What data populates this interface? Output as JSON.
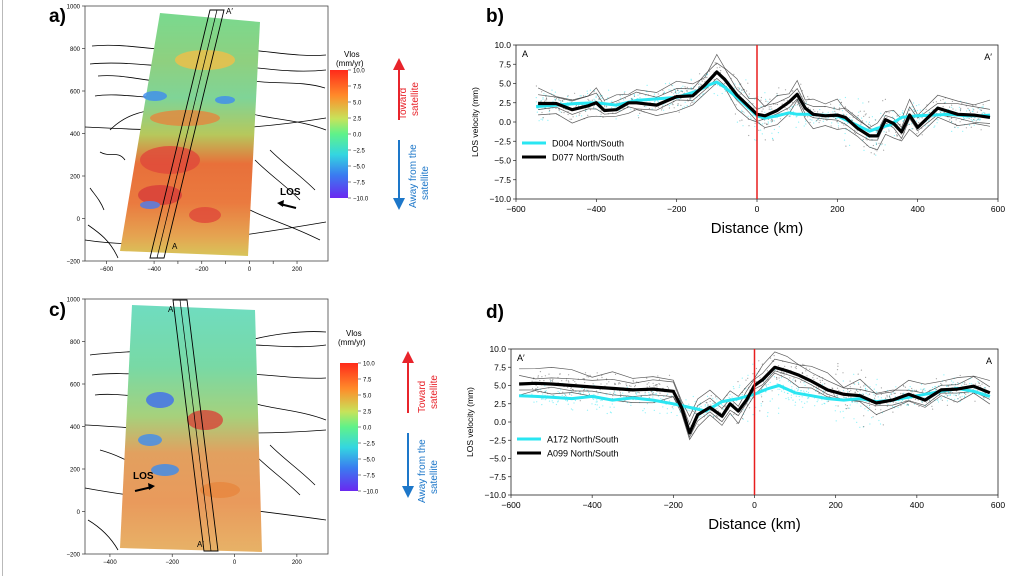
{
  "panels": {
    "a": {
      "letter": "a)",
      "profile_start": "A",
      "profile_end": "A′",
      "los_label": "LOS",
      "x_ticks": [
        -600,
        -400,
        -300,
        -200,
        -100,
        0,
        100,
        200
      ],
      "x_tick_labels": [
        "−600",
        "−400",
        "",
        "−200",
        "",
        "0",
        "",
        "200"
      ],
      "y_ticks": [
        -200,
        0,
        200,
        400,
        600,
        800,
        1000
      ],
      "colorbar": {
        "title_line1": "Vlos",
        "title_line2": "(mm/yr)",
        "ticks": [
          10.0,
          7.5,
          5.0,
          2.5,
          0.0,
          -2.5,
          -5.0,
          -7.5,
          -10.0
        ],
        "tick_labels": [
          "10.0",
          "7.5",
          "5.0",
          "2.5",
          "0.0",
          "−2.5",
          "−5.0",
          "−7.5",
          "−10.0"
        ]
      },
      "toward_label": [
        "Toward",
        "satellite"
      ],
      "away_label": [
        "Away from the",
        "satellite"
      ]
    },
    "c": {
      "letter": "c)",
      "profile_start": "A",
      "profile_end": "A′",
      "los_label": "LOS",
      "x_ticks": [
        -400,
        -200,
        0,
        200
      ],
      "x_tick_labels": [
        "−400",
        "−200",
        "0",
        "200"
      ],
      "y_ticks": [
        -200,
        0,
        200,
        400,
        600,
        800,
        1000
      ],
      "colorbar": {
        "title_line1": "Vlos",
        "title_line2": "(mm/yr)",
        "ticks": [
          10.0,
          7.5,
          5.0,
          2.5,
          0.0,
          -2.5,
          -5.0,
          -7.5,
          -10.0
        ],
        "tick_labels": [
          "10.0",
          "7.5",
          "5.0",
          "2.5",
          "0.0",
          "−2.5",
          "−5.0",
          "−7.5",
          "−10.0"
        ]
      },
      "toward_label": [
        "Toward",
        "satellite"
      ],
      "away_label": [
        "Away from the",
        "satellite"
      ]
    }
  },
  "colors": {
    "toward_arrow": "#e8242b",
    "away_arrow": "#1d77c9",
    "cyan_series": "#29e6f2",
    "black_series": "#000000",
    "zero_line": "#e81e1e",
    "faults": "#000000"
  },
  "chart_data": [
    {
      "panel": "b",
      "letter": "b)",
      "type": "line",
      "profile_left": "A",
      "profile_right": "A′",
      "xlabel": "Distance (km)",
      "ylabel": "LOS velocity (mm)",
      "xlim": [
        -600,
        600
      ],
      "ylim": [
        -10.0,
        10.0
      ],
      "x_ticks": [
        -600,
        -400,
        -200,
        0,
        200,
        400,
        600
      ],
      "x_tick_labels": [
        "−600",
        "−400",
        "−200",
        "0",
        "200",
        "400",
        "600"
      ],
      "y_ticks": [
        -10.0,
        -7.5,
        -5.0,
        -2.5,
        0.0,
        2.5,
        5.0,
        7.5,
        10.0
      ],
      "y_tick_labels": [
        "−10.0",
        "−7.5",
        "−5.0",
        "−2.5",
        "0.0",
        "2.5",
        "5.0",
        "7.5",
        "10.0"
      ],
      "vertical_line_x": 0,
      "legend_position": "lower-left",
      "series": [
        {
          "name": "D004 North/South",
          "color": "#29e6f2",
          "x": [
            -550,
            -500,
            -450,
            -400,
            -350,
            -300,
            -250,
            -200,
            -150,
            -120,
            -100,
            -80,
            -50,
            -20,
            0,
            20,
            50,
            80,
            100,
            130,
            160,
            200,
            240,
            280,
            300,
            330,
            360,
            400,
            440,
            480,
            520,
            560,
            580
          ],
          "values": [
            2.0,
            2.2,
            2.4,
            2.5,
            2.2,
            2.8,
            3.0,
            3.2,
            4.0,
            4.8,
            5.2,
            4.5,
            3.2,
            1.8,
            0.8,
            0.5,
            0.8,
            1.2,
            1.0,
            1.0,
            0.9,
            0.8,
            -0.2,
            -1.2,
            -0.8,
            -0.4,
            0.6,
            0.8,
            0.9,
            1.0,
            0.8,
            0.8,
            0.9
          ]
        },
        {
          "name": "D077 North/South",
          "color": "#000000",
          "x": [
            -545,
            -500,
            -460,
            -420,
            -400,
            -380,
            -350,
            -320,
            -300,
            -250,
            -200,
            -160,
            -130,
            -100,
            -80,
            -50,
            -20,
            0,
            20,
            50,
            80,
            100,
            120,
            140,
            170,
            200,
            220,
            250,
            280,
            300,
            320,
            340,
            360,
            380,
            400,
            450,
            500,
            540,
            580
          ],
          "values": [
            2.4,
            2.4,
            1.6,
            2.1,
            2.5,
            1.5,
            1.6,
            2.5,
            2.5,
            2.2,
            3.3,
            3.4,
            4.8,
            6.5,
            5.5,
            3.5,
            2.0,
            1.0,
            0.8,
            1.5,
            2.6,
            3.6,
            1.8,
            1.0,
            0.8,
            0.9,
            0.6,
            -0.8,
            -1.8,
            -1.8,
            0.3,
            -0.2,
            -1.3,
            0.9,
            -0.7,
            1.8,
            1.0,
            0.9,
            0.6
          ]
        }
      ]
    },
    {
      "panel": "d",
      "letter": "d)",
      "type": "line",
      "profile_left": "A′",
      "profile_right": "A",
      "xlabel": "Distance (km)",
      "ylabel": "LOS velocity (mm)",
      "xlim": [
        -600,
        600
      ],
      "ylim": [
        -10.0,
        10.0
      ],
      "x_ticks": [
        -600,
        -400,
        -200,
        0,
        200,
        400,
        600
      ],
      "x_tick_labels": [
        "−600",
        "−400",
        "−200",
        "0",
        "200",
        "400",
        "600"
      ],
      "y_ticks": [
        -10.0,
        -7.5,
        -5.0,
        -2.5,
        0.0,
        2.5,
        5.0,
        7.5,
        10.0
      ],
      "y_tick_labels": [
        "−10.0",
        "−7.5",
        "−5.0",
        "−2.5",
        "0.0",
        "2.5",
        "5.0",
        "7.5",
        "10.0"
      ],
      "vertical_line_x": 0,
      "legend_position": "lower-left",
      "series": [
        {
          "name": "A172 North/South",
          "color": "#29e6f2",
          "x": [
            -580,
            -540,
            -500,
            -450,
            -400,
            -350,
            -300,
            -250,
            -200,
            -160,
            -120,
            -80,
            -40,
            0,
            30,
            60,
            100,
            140,
            180,
            220,
            260,
            300,
            340,
            380,
            420,
            460,
            500,
            540,
            580
          ],
          "values": [
            3.6,
            3.5,
            3.4,
            3.2,
            3.5,
            3.0,
            3.3,
            3.0,
            2.5,
            2.0,
            1.5,
            2.8,
            3.2,
            3.8,
            4.5,
            5.0,
            4.0,
            3.6,
            3.2,
            3.0,
            3.2,
            2.8,
            3.0,
            3.4,
            3.8,
            4.2,
            4.6,
            4.2,
            3.5
          ]
        },
        {
          "name": "A099 North/South",
          "color": "#000000",
          "x": [
            -580,
            -540,
            -500,
            -450,
            -400,
            -350,
            -300,
            -250,
            -200,
            -180,
            -160,
            -140,
            -110,
            -80,
            -60,
            -40,
            -20,
            0,
            20,
            50,
            80,
            110,
            140,
            180,
            220,
            260,
            300,
            340,
            380,
            420,
            460,
            500,
            540,
            580
          ],
          "values": [
            5.2,
            5.3,
            5.2,
            5.0,
            4.8,
            4.6,
            4.4,
            4.5,
            4.2,
            2.0,
            -1.5,
            1.0,
            2.0,
            0.8,
            2.5,
            1.5,
            3.0,
            5.0,
            5.8,
            7.5,
            7.0,
            6.4,
            5.6,
            4.4,
            3.8,
            3.6,
            2.6,
            3.0,
            3.8,
            3.0,
            4.4,
            4.5,
            4.9,
            4.0
          ]
        }
      ]
    }
  ]
}
